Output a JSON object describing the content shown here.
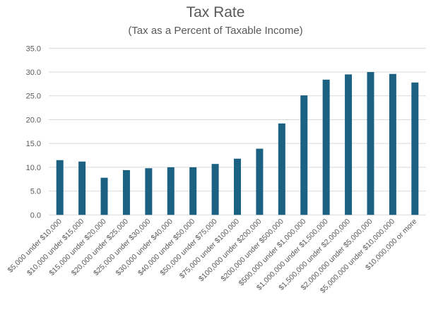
{
  "chart_data": {
    "type": "bar",
    "title": "Tax Rate",
    "subtitle": "(Tax as a Percent of Taxable Income)",
    "xlabel": "",
    "ylabel": "",
    "ylim": [
      0,
      35
    ],
    "yticks": [
      "0.0",
      "5.0",
      "10.0",
      "15.0",
      "20.0",
      "25.0",
      "30.0",
      "35.0"
    ],
    "grid": true,
    "legend": "none",
    "bar_color": "#1B6282",
    "categories": [
      "$5,000 under $10,000",
      "$10,000 under $15,000",
      "$15,000 under $20,000",
      "$20,000 under $25,000",
      "$25,000 under $30,000",
      "$30,000 under $40,000",
      "$40,000 under $50,000",
      "$50,000 under $75,000",
      "$75,000 under $100,000",
      "$100,000 under $200,000",
      "$200,000 under $500,000",
      "$500,000 under $1,000,000",
      "$1,000,000 under $1,500,000",
      "$1,500,000 under $2,000,000",
      "$2,000,000 under $5,000,000",
      "$5,000,000 under $10,000,000",
      "$10,000,000 or more"
    ],
    "values": [
      11.5,
      11.2,
      7.8,
      9.4,
      9.8,
      10.0,
      10.0,
      10.7,
      11.8,
      13.9,
      19.2,
      25.1,
      28.4,
      29.5,
      30.0,
      29.6,
      27.8
    ]
  }
}
